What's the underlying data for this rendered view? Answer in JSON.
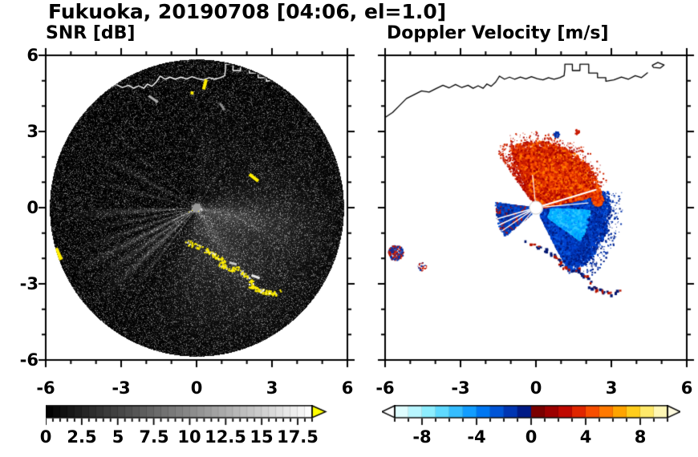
{
  "figure": {
    "title": "Fukuoka, 20190708 [04:06, el=1.0]"
  },
  "coastline": [
    [
      [
        -6,
        3.55
      ],
      [
        -5.7,
        3.75
      ],
      [
        -5.45,
        4.0
      ],
      [
        -5.15,
        4.3
      ],
      [
        -4.85,
        4.45
      ],
      [
        -4.55,
        4.6
      ],
      [
        -4.25,
        4.55
      ],
      [
        -3.95,
        4.7
      ],
      [
        -3.7,
        4.82
      ],
      [
        -3.45,
        4.72
      ],
      [
        -3.2,
        4.85
      ],
      [
        -2.95,
        4.73
      ],
      [
        -2.7,
        4.82
      ],
      [
        -2.5,
        4.7
      ],
      [
        -2.3,
        4.8
      ],
      [
        -2.1,
        4.7
      ],
      [
        -1.95,
        4.87
      ],
      [
        -1.78,
        4.78
      ],
      [
        -1.6,
        4.95
      ],
      [
        -1.45,
        5.18
      ],
      [
        -1.25,
        5.06
      ],
      [
        -1.05,
        5.14
      ],
      [
        -0.85,
        5.06
      ],
      [
        -0.62,
        5.14
      ],
      [
        -0.4,
        5.07
      ],
      [
        -0.18,
        5.16
      ],
      [
        0.05,
        5.08
      ],
      [
        0.28,
        5.03
      ],
      [
        0.5,
        5.12
      ],
      [
        0.72,
        5.06
      ],
      [
        0.95,
        5.12
      ],
      [
        1.12,
        5.2
      ],
      [
        1.15,
        5.45
      ],
      [
        1.15,
        5.65
      ],
      [
        1.45,
        5.65
      ],
      [
        1.45,
        5.4
      ],
      [
        1.75,
        5.4
      ],
      [
        1.75,
        5.65
      ],
      [
        2.1,
        5.65
      ],
      [
        2.1,
        5.3
      ],
      [
        2.45,
        5.3
      ],
      [
        2.45,
        5.12
      ],
      [
        2.78,
        5.12
      ],
      [
        2.78,
        4.98
      ],
      [
        3.1,
        5.03
      ],
      [
        3.4,
        5.14
      ],
      [
        3.68,
        5.06
      ],
      [
        3.95,
        5.2
      ],
      [
        4.2,
        5.12
      ],
      [
        4.45,
        5.32
      ]
    ],
    [
      [
        4.62,
        5.6
      ],
      [
        4.85,
        5.72
      ],
      [
        5.1,
        5.62
      ],
      [
        4.95,
        5.5
      ],
      [
        4.68,
        5.52
      ],
      [
        4.62,
        5.6
      ]
    ]
  ],
  "clutter_arc": [
    [
      -0.42,
      -1.32
    ],
    [
      -0.15,
      -1.45
    ],
    [
      0.1,
      -1.55
    ],
    [
      0.38,
      -1.68
    ],
    [
      0.6,
      -1.78
    ],
    [
      0.82,
      -1.95
    ],
    [
      1.02,
      -2.05
    ],
    [
      0.95,
      -2.22
    ],
    [
      1.18,
      -2.35
    ],
    [
      1.45,
      -2.42
    ],
    [
      1.62,
      -2.38
    ],
    [
      1.85,
      -2.62
    ],
    [
      2.05,
      -2.78
    ],
    [
      2.22,
      -2.92
    ],
    [
      2.12,
      -3.08
    ],
    [
      2.35,
      -3.18
    ],
    [
      2.6,
      -3.28
    ],
    [
      2.88,
      -3.34
    ],
    [
      3.1,
      -3.35
    ],
    [
      3.28,
      -3.28
    ]
  ],
  "chart_data": [
    {
      "id": "snr",
      "type": "heatmap",
      "title": "SNR [dB]",
      "xlabel": "",
      "ylabel": "",
      "xlim": [
        -6,
        6
      ],
      "ylim": [
        -6,
        6
      ],
      "xticks": [
        "-6",
        "-3",
        "0",
        "3",
        "6"
      ],
      "yticks": [
        "6",
        "3",
        "0",
        "-3",
        "-6"
      ],
      "grid": false,
      "scan_radius": 5.85,
      "background": "#000000",
      "center_dot": {
        "r": 0.16,
        "color": "#999999"
      },
      "colorbar": {
        "range": [
          0,
          18.5
        ],
        "segment_step": 0.5,
        "tick_values": [
          0,
          2.5,
          5,
          7.5,
          10,
          12.5,
          15,
          17.5
        ],
        "tick_labels": [
          "0",
          "2.5",
          "5",
          "7.5",
          "10",
          "12.5",
          "15",
          "17.5"
        ],
        "colormap": "grayscale",
        "over_color": "#ffff00"
      },
      "beams": [
        {
          "az_deg": -35,
          "sigma_deg": 42,
          "amp": 6,
          "rmax": 6.5
        },
        {
          "az_deg": -12,
          "sigma_deg": 9,
          "amp": 4,
          "rmax": 6
        },
        {
          "az_deg": -58,
          "sigma_deg": 8,
          "amp": 3,
          "rmax": 6
        },
        {
          "az_deg": -90,
          "sigma_deg": 14,
          "amp": 2.2,
          "rmax": 6
        },
        {
          "az_deg": 183,
          "sigma_deg": 1.6,
          "amp": 9,
          "rmax": 5.6
        },
        {
          "az_deg": 191,
          "sigma_deg": 1.1,
          "amp": 7,
          "rmax": 5.2
        },
        {
          "az_deg": 199,
          "sigma_deg": 1.3,
          "amp": 8,
          "rmax": 5.4
        },
        {
          "az_deg": 207,
          "sigma_deg": 1.6,
          "amp": 11,
          "rmax": 5.6
        },
        {
          "az_deg": 215,
          "sigma_deg": 1.2,
          "amp": 9,
          "rmax": 5.2
        },
        {
          "az_deg": 223,
          "sigma_deg": 1.6,
          "amp": 10,
          "rmax": 5.5
        },
        {
          "az_deg": 232,
          "sigma_deg": 1.1,
          "amp": 7,
          "rmax": 4.8
        },
        {
          "az_deg": 218,
          "sigma_deg": 7,
          "amp": 2.5,
          "rmax": 5.5
        },
        {
          "az_deg": 152,
          "sigma_deg": 1.4,
          "amp": 5.5,
          "rmax": 5
        },
        {
          "az_deg": 138,
          "sigma_deg": 1.0,
          "amp": 4,
          "rmax": 4.5
        },
        {
          "az_deg": 165,
          "sigma_deg": 1.2,
          "amp": 4.5,
          "rmax": 5
        },
        {
          "az_deg": 207,
          "sigma_deg": 5,
          "amp": 9,
          "rmax": 1.1
        },
        {
          "az_deg": 60,
          "sigma_deg": 2,
          "amp": 2.5,
          "rmax": 4
        },
        {
          "az_deg": 80,
          "sigma_deg": 10,
          "amp": 1.2,
          "rmax": 5
        }
      ],
      "clutter_spots": [
        {
          "x": 2.28,
          "y": 1.18,
          "w": 0.45,
          "h": 0.13,
          "rot_deg": -38,
          "color": "#ffee00"
        },
        {
          "x": 0.33,
          "y": 4.85,
          "w": 0.13,
          "h": 0.4,
          "rot_deg": -15,
          "color": "#ffee00"
        },
        {
          "x": -0.18,
          "y": 4.52,
          "w": 0.12,
          "h": 0.12,
          "rot_deg": 0,
          "color": "#ffee00"
        },
        {
          "x": -5.55,
          "y": -1.85,
          "w": 0.28,
          "h": 0.5,
          "rot_deg": 25,
          "color": "#ffee00"
        },
        {
          "x": -1.72,
          "y": 4.28,
          "w": 0.45,
          "h": 0.1,
          "rot_deg": -35,
          "color": "#b0b0b0"
        },
        {
          "x": 1.02,
          "y": 3.98,
          "w": 0.32,
          "h": 0.09,
          "rot_deg": -55,
          "color": "#909090"
        },
        {
          "x": 2.35,
          "y": -2.72,
          "w": 0.35,
          "h": 0.1,
          "rot_deg": -20,
          "color": "#e8e8e8"
        },
        {
          "x": 1.45,
          "y": -2.2,
          "w": 0.3,
          "h": 0.09,
          "rot_deg": -15,
          "color": "#cccccc"
        }
      ]
    },
    {
      "id": "doppler",
      "type": "scatter",
      "title": "Doppler Velocity [m/s]",
      "xlabel": "",
      "ylabel": "",
      "xlim": [
        -6,
        6
      ],
      "ylim": [
        -6,
        6
      ],
      "xticks": [
        "-6",
        "-3",
        "0",
        "3",
        "6"
      ],
      "yticks": [],
      "grid": false,
      "center_dot": {
        "r": 0.26,
        "color": "#ffffff"
      },
      "colorbar": {
        "range": [
          -10,
          10
        ],
        "segment_step": 1,
        "tick_values": [
          -8,
          -4,
          0,
          4,
          8
        ],
        "tick_labels": [
          "-8",
          "-4",
          "0",
          "4",
          "8"
        ],
        "segment_colors": [
          "#dffdff",
          "#b8f6ff",
          "#8deeff",
          "#5fd9ff",
          "#35bdff",
          "#129dff",
          "#0077f2",
          "#0054d6",
          "#0035b2",
          "#001a86",
          "#7a0000",
          "#9c0000",
          "#c00800",
          "#e02600",
          "#f74e00",
          "#ff7900",
          "#ffa400",
          "#ffcd1c",
          "#ffe96a",
          "#fff7b5"
        ],
        "under_color": "#ffffff",
        "over_color": "#fffbe0"
      },
      "regions": [
        {
          "name": "blue-fan",
          "angle_deg": [
            -63,
            14
          ],
          "r": [
            0.28,
            2.9
          ],
          "n": 14000,
          "size": 2,
          "palette": [
            "#0043d0",
            "#0030a8",
            "#001c80",
            "#0c5ce0"
          ]
        },
        {
          "name": "blue-sparse",
          "angle_deg": [
            -58,
            12
          ],
          "r": [
            2.2,
            3.45
          ],
          "n": 1100,
          "size": 1,
          "palette": [
            "#0030a8",
            "#001c80"
          ]
        },
        {
          "name": "cyan-core",
          "angle_deg": [
            -36,
            -2
          ],
          "r": [
            0.55,
            2.1
          ],
          "n": 5200,
          "size": 2,
          "palette": [
            "#00b4ff",
            "#2ec8ff",
            "#0092ff"
          ]
        },
        {
          "name": "red-fan",
          "angle_deg": [
            12,
            114
          ],
          "r": [
            0.28,
            2.65
          ],
          "n": 16000,
          "size": 2,
          "palette": [
            "#e03000",
            "#ff5a00",
            "#c41800",
            "#ff7a00",
            "#a80000"
          ]
        },
        {
          "name": "red-spike",
          "angle_deg": [
            112,
            126
          ],
          "r": [
            0.4,
            2.85
          ],
          "n": 700,
          "size": 1,
          "palette": [
            "#d22800",
            "#a80000"
          ]
        },
        {
          "name": "red-sparse",
          "angle_deg": [
            18,
            112
          ],
          "r": [
            2.1,
            3.05
          ],
          "n": 900,
          "size": 1,
          "palette": [
            "#d22800",
            "#a80000"
          ]
        },
        {
          "name": "left-fan",
          "angle_deg": [
            172,
            220
          ],
          "r": [
            0.3,
            1.65
          ],
          "n": 3000,
          "size": 2,
          "palette": [
            "#0038b0",
            "#0050d8",
            "#001c80",
            "#c01000"
          ]
        }
      ],
      "white_gaps": [
        {
          "az_deg": 16.5,
          "len": 2.5,
          "w": 2.2
        },
        {
          "az_deg": 5,
          "len": 2.1,
          "w": 1.2
        },
        {
          "az_deg": 96,
          "len": 1.3,
          "w": 1.1
        },
        {
          "az_deg": 196,
          "len": 1.7,
          "w": 1.6
        },
        {
          "az_deg": 205,
          "len": 1.8,
          "w": 1.6
        },
        {
          "az_deg": 214,
          "len": 1.65,
          "w": 1.4
        },
        {
          "az_deg": 228,
          "len": 1.2,
          "w": 1.2
        }
      ],
      "spots": [
        {
          "x": 2.42,
          "y": 0.33,
          "r": 0.24,
          "n": 170,
          "palette": [
            "#d42000",
            "#ff5a00"
          ]
        },
        {
          "x": -5.6,
          "y": -1.75,
          "r": 0.3,
          "n": 180,
          "palette": [
            "#c81800",
            "#0030a8"
          ]
        },
        {
          "x": -4.55,
          "y": -2.3,
          "r": 0.17,
          "n": 70,
          "palette": [
            "#c81800",
            "#ffffff",
            "#0030a8"
          ]
        },
        {
          "x": 0.8,
          "y": 2.9,
          "r": 0.12,
          "n": 25,
          "palette": [
            "#0030a8"
          ]
        },
        {
          "x": 1.6,
          "y": 3.0,
          "r": 0.1,
          "n": 18,
          "palette": [
            "#c81800"
          ]
        }
      ]
    }
  ]
}
